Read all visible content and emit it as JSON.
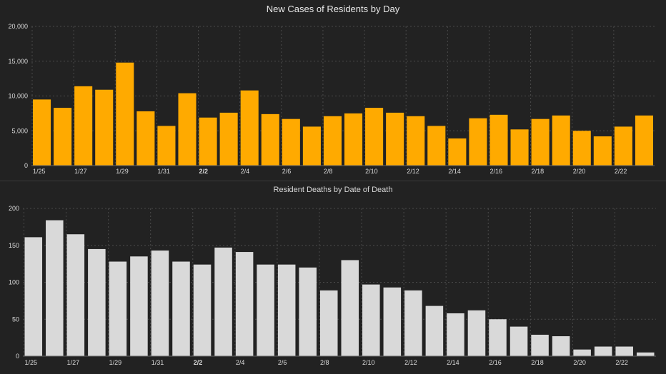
{
  "chart_data": [
    {
      "type": "bar",
      "title": "New Cases of Residents by Day",
      "xlabel": "",
      "ylabel": "",
      "ylim": [
        0,
        20000
      ],
      "yticks": [
        0,
        5000,
        10000,
        15000,
        20000
      ],
      "ytick_labels": [
        "0",
        "5,000",
        "10,000",
        "15,000",
        "20,000"
      ],
      "categories": [
        "1/25",
        "1/26",
        "1/27",
        "1/28",
        "1/29",
        "1/30",
        "1/31",
        "2/1",
        "2/2",
        "2/3",
        "2/4",
        "2/5",
        "2/6",
        "2/7",
        "2/8",
        "2/9",
        "2/10",
        "2/11",
        "2/12",
        "2/13",
        "2/14",
        "2/15",
        "2/16",
        "2/17",
        "2/18",
        "2/19",
        "2/20",
        "2/21",
        "2/22",
        "2/23"
      ],
      "xtick_labels": [
        "1/25",
        "1/27",
        "1/29",
        "1/31",
        "2/2",
        "2/4",
        "2/6",
        "2/8",
        "2/10",
        "2/12",
        "2/14",
        "2/16",
        "2/18",
        "2/20",
        "2/22"
      ],
      "values": [
        9500,
        8300,
        11400,
        10900,
        14800,
        7800,
        5700,
        10400,
        6900,
        7600,
        10800,
        7400,
        6700,
        5600,
        7100,
        7500,
        8300,
        7600,
        7100,
        5700,
        3900,
        6800,
        7300,
        5200,
        6700,
        7200,
        5000,
        4200,
        5600,
        7200
      ],
      "color": "#FFAA00",
      "grid": true
    },
    {
      "type": "bar",
      "title": "Resident Deaths by Date of Death",
      "xlabel": "",
      "ylabel": "",
      "ylim": [
        0,
        200
      ],
      "yticks": [
        0,
        50,
        100,
        150,
        200
      ],
      "ytick_labels": [
        "0",
        "50",
        "100",
        "150",
        "200"
      ],
      "categories": [
        "1/25",
        "1/26",
        "1/27",
        "1/28",
        "1/29",
        "1/30",
        "1/31",
        "2/1",
        "2/2",
        "2/3",
        "2/4",
        "2/5",
        "2/6",
        "2/7",
        "2/8",
        "2/9",
        "2/10",
        "2/11",
        "2/12",
        "2/13",
        "2/14",
        "2/15",
        "2/16",
        "2/17",
        "2/18",
        "2/19",
        "2/20",
        "2/21",
        "2/22",
        "2/23"
      ],
      "xtick_labels": [
        "1/25",
        "1/27",
        "1/29",
        "1/31",
        "2/2",
        "2/4",
        "2/6",
        "2/8",
        "2/10",
        "2/12",
        "2/14",
        "2/16",
        "2/18",
        "2/20",
        "2/22"
      ],
      "values": [
        161,
        184,
        165,
        145,
        128,
        135,
        143,
        128,
        124,
        147,
        141,
        124,
        124,
        120,
        89,
        130,
        97,
        93,
        89,
        68,
        58,
        62,
        50,
        40,
        29,
        27,
        9,
        13,
        13,
        5
      ],
      "color": "#D9D9D9",
      "grid": true
    }
  ],
  "colors": {
    "background": "#222222",
    "cases_bar": "#FFAA00",
    "deaths_bar": "#D9D9D9",
    "grid": "#4a4a4a"
  }
}
